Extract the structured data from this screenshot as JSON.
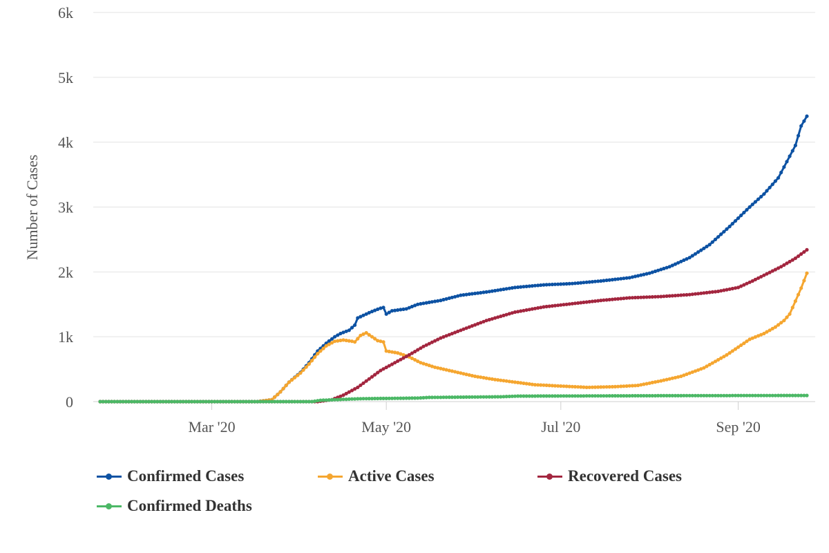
{
  "chart_data": {
    "type": "line",
    "title": "",
    "xlabel": "",
    "ylabel": "Number of Cases",
    "x_range": [
      "2020-01-22",
      "2020-09-25"
    ],
    "ylim": [
      0,
      6000
    ],
    "y_ticks": [
      0,
      1000,
      2000,
      3000,
      4000,
      5000,
      6000
    ],
    "y_tick_labels": [
      "0",
      "1k",
      "2k",
      "3k",
      "4k",
      "5k",
      "6k"
    ],
    "x_ticks": [
      "2020-03-01",
      "2020-05-01",
      "2020-07-01",
      "2020-09-01"
    ],
    "x_tick_labels": [
      "Mar '20",
      "May '20",
      "Jul '20",
      "Sep '20"
    ],
    "grid": "horizontal",
    "legend_position": "bottom",
    "series": [
      {
        "name": "Confirmed Cases",
        "color": "#0d52a3",
        "points": [
          [
            "2020-01-22",
            0
          ],
          [
            "2020-03-17",
            0
          ],
          [
            "2020-03-22",
            30
          ],
          [
            "2020-03-25",
            150
          ],
          [
            "2020-03-28",
            300
          ],
          [
            "2020-04-01",
            450
          ],
          [
            "2020-04-04",
            600
          ],
          [
            "2020-04-07",
            780
          ],
          [
            "2020-04-10",
            900
          ],
          [
            "2020-04-13",
            1000
          ],
          [
            "2020-04-15",
            1050
          ],
          [
            "2020-04-18",
            1100
          ],
          [
            "2020-04-20",
            1180
          ],
          [
            "2020-04-21",
            1290
          ],
          [
            "2020-04-23",
            1330
          ],
          [
            "2020-04-26",
            1390
          ],
          [
            "2020-04-29",
            1440
          ],
          [
            "2020-04-30",
            1450
          ],
          [
            "2020-05-01",
            1350
          ],
          [
            "2020-05-03",
            1400
          ],
          [
            "2020-05-08",
            1430
          ],
          [
            "2020-05-12",
            1500
          ],
          [
            "2020-05-20",
            1560
          ],
          [
            "2020-05-27",
            1640
          ],
          [
            "2020-06-05",
            1690
          ],
          [
            "2020-06-15",
            1760
          ],
          [
            "2020-06-25",
            1800
          ],
          [
            "2020-07-05",
            1820
          ],
          [
            "2020-07-15",
            1860
          ],
          [
            "2020-07-25",
            1910
          ],
          [
            "2020-08-01",
            1980
          ],
          [
            "2020-08-08",
            2080
          ],
          [
            "2020-08-15",
            2220
          ],
          [
            "2020-08-22",
            2420
          ],
          [
            "2020-08-29",
            2700
          ],
          [
            "2020-09-05",
            3000
          ],
          [
            "2020-09-10",
            3200
          ],
          [
            "2020-09-15",
            3450
          ],
          [
            "2020-09-18",
            3700
          ],
          [
            "2020-09-21",
            3950
          ],
          [
            "2020-09-23",
            4250
          ],
          [
            "2020-09-25",
            4400
          ]
        ]
      },
      {
        "name": "Active Cases",
        "color": "#f5a630",
        "points": [
          [
            "2020-01-22",
            0
          ],
          [
            "2020-03-17",
            0
          ],
          [
            "2020-03-22",
            30
          ],
          [
            "2020-03-25",
            150
          ],
          [
            "2020-03-28",
            300
          ],
          [
            "2020-04-01",
            440
          ],
          [
            "2020-04-04",
            580
          ],
          [
            "2020-04-07",
            740
          ],
          [
            "2020-04-10",
            860
          ],
          [
            "2020-04-13",
            930
          ],
          [
            "2020-04-16",
            950
          ],
          [
            "2020-04-19",
            930
          ],
          [
            "2020-04-20",
            920
          ],
          [
            "2020-04-22",
            1020
          ],
          [
            "2020-04-24",
            1060
          ],
          [
            "2020-04-26",
            1000
          ],
          [
            "2020-04-28",
            940
          ],
          [
            "2020-04-30",
            920
          ],
          [
            "2020-05-01",
            780
          ],
          [
            "2020-05-05",
            750
          ],
          [
            "2020-05-09",
            690
          ],
          [
            "2020-05-13",
            600
          ],
          [
            "2020-05-18",
            530
          ],
          [
            "2020-05-25",
            460
          ],
          [
            "2020-06-01",
            390
          ],
          [
            "2020-06-08",
            340
          ],
          [
            "2020-06-15",
            300
          ],
          [
            "2020-06-22",
            260
          ],
          [
            "2020-07-01",
            240
          ],
          [
            "2020-07-10",
            220
          ],
          [
            "2020-07-20",
            230
          ],
          [
            "2020-07-28",
            250
          ],
          [
            "2020-08-05",
            320
          ],
          [
            "2020-08-12",
            390
          ],
          [
            "2020-08-20",
            520
          ],
          [
            "2020-08-28",
            720
          ],
          [
            "2020-09-05",
            960
          ],
          [
            "2020-09-10",
            1050
          ],
          [
            "2020-09-14",
            1150
          ],
          [
            "2020-09-17",
            1250
          ],
          [
            "2020-09-19",
            1350
          ],
          [
            "2020-09-21",
            1550
          ],
          [
            "2020-09-23",
            1750
          ],
          [
            "2020-09-25",
            1980
          ]
        ]
      },
      {
        "name": "Recovered Cases",
        "color": "#a3263f",
        "points": [
          [
            "2020-01-22",
            0
          ],
          [
            "2020-04-07",
            0
          ],
          [
            "2020-04-12",
            30
          ],
          [
            "2020-04-16",
            100
          ],
          [
            "2020-04-21",
            220
          ],
          [
            "2020-04-25",
            350
          ],
          [
            "2020-04-29",
            480
          ],
          [
            "2020-05-04",
            600
          ],
          [
            "2020-05-09",
            720
          ],
          [
            "2020-05-14",
            850
          ],
          [
            "2020-05-20",
            980
          ],
          [
            "2020-05-27",
            1100
          ],
          [
            "2020-06-05",
            1250
          ],
          [
            "2020-06-15",
            1380
          ],
          [
            "2020-06-25",
            1460
          ],
          [
            "2020-07-05",
            1510
          ],
          [
            "2020-07-15",
            1560
          ],
          [
            "2020-07-25",
            1600
          ],
          [
            "2020-08-05",
            1620
          ],
          [
            "2020-08-15",
            1650
          ],
          [
            "2020-08-25",
            1700
          ],
          [
            "2020-09-01",
            1760
          ],
          [
            "2020-09-06",
            1860
          ],
          [
            "2020-09-11",
            1970
          ],
          [
            "2020-09-16",
            2080
          ],
          [
            "2020-09-21",
            2210
          ],
          [
            "2020-09-25",
            2340
          ]
        ]
      },
      {
        "name": "Confirmed Deaths",
        "color": "#4cb866",
        "points": [
          [
            "2020-01-22",
            0
          ],
          [
            "2020-04-05",
            0
          ],
          [
            "2020-04-08",
            20
          ],
          [
            "2020-04-16",
            35
          ],
          [
            "2020-04-22",
            45
          ],
          [
            "2020-05-12",
            55
          ],
          [
            "2020-05-16",
            65
          ],
          [
            "2020-06-10",
            75
          ],
          [
            "2020-06-16",
            85
          ],
          [
            "2020-07-10",
            88
          ],
          [
            "2020-08-10",
            92
          ],
          [
            "2020-09-25",
            95
          ]
        ]
      }
    ]
  },
  "legend": {
    "items": [
      "Confirmed Cases",
      "Active Cases",
      "Recovered Cases",
      "Confirmed Deaths"
    ]
  }
}
